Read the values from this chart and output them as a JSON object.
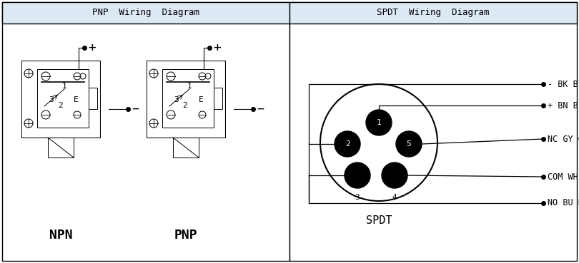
{
  "fig_width": 8.1,
  "fig_height": 3.69,
  "dpi": 100,
  "bg_color": "#ffffff",
  "header_bg": "#dce9f5",
  "left_title": "PNP  Wiring  Diagram",
  "right_title": "SPDT  Wiring  Diagram",
  "npn_label": "NPN",
  "pnp_label": "PNP",
  "spdt_label": "SPDT",
  "wire_labels": [
    "- BK Black",
    "+ BN Brown",
    "NC GY Gray",
    "COM WH White",
    "NO BU Blue"
  ]
}
